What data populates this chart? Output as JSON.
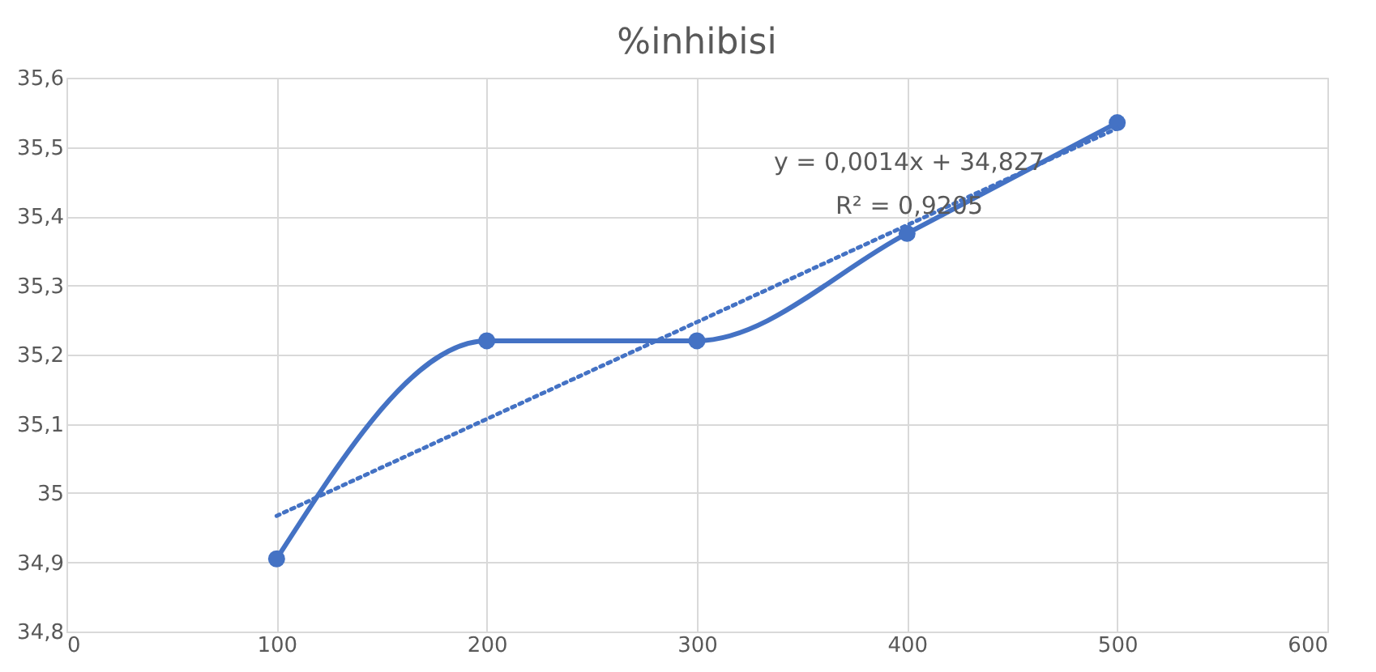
{
  "chart_data": {
    "type": "line",
    "title": "%inhibisi",
    "x": [
      100,
      200,
      300,
      400,
      500
    ],
    "series": [
      {
        "color": "#4472c4",
        "values": [
          34.905,
          35.22,
          35.22,
          35.375,
          35.535
        ],
        "marker": "circle",
        "line_style": "solid"
      },
      {
        "type": "line",
        "color": "#4472c4",
        "x": [
          100,
          500
        ],
        "values": [
          34.967,
          35.527
        ],
        "marker": "none",
        "line_style": "dotted"
      }
    ],
    "xlim": [
      0,
      600
    ],
    "xticks": [
      0,
      100,
      200,
      300,
      400,
      500,
      600
    ],
    "ylim": [
      34.8,
      35.6
    ],
    "yticks": [
      {
        "value": 34.8,
        "label": "34,8"
      },
      {
        "value": 34.9,
        "label": "34,9"
      },
      {
        "value": 35,
        "label": "35"
      },
      {
        "value": 35.1,
        "label": "35,1"
      },
      {
        "value": 35.2,
        "label": "35,2"
      },
      {
        "value": 35.3,
        "label": "35,3"
      },
      {
        "value": 35.4,
        "label": "35,4"
      },
      {
        "value": 35.5,
        "label": "35,5"
      },
      {
        "value": 35.6,
        "label": "35,6"
      }
    ],
    "grid": true,
    "annotations": [
      "y = 0,0014x + 34,827",
      "R² = 0,9205"
    ]
  }
}
